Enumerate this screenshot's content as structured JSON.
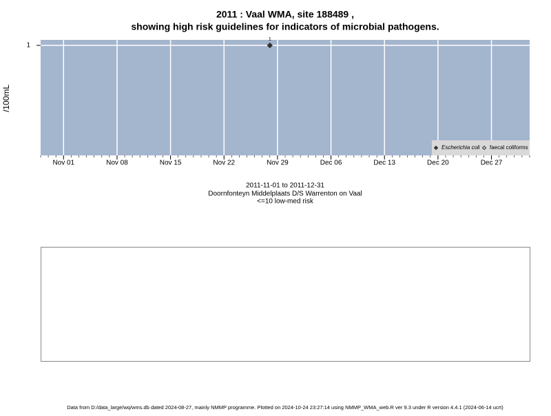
{
  "chart_data": {
    "type": "scatter",
    "title": "2011 : Vaal WMA, site 188489 ,",
    "subtitle": "showing high risk guidelines for indicators of microbial pathogens.",
    "y_label": "/100mL",
    "annotations": [
      "2011-11-01 to 2011-12-31",
      "Doornfonteyn Middelplaats D/S Warrenton on Vaal",
      "<=10 low-med risk"
    ],
    "footer": "Data from D:/data_large/wq/wms.db dated 2024-08-27, mainly NMMP programme. Plotted on 2024-10-24 23:27:14 using NMMP_WMA_web.R ver 9.3 under R version 4.4.1 (2024-06-14 ucrt)",
    "series": [
      {
        "name": "Escherichia coli",
        "color": "#333333",
        "filled": true,
        "x": [
          "2011-11-28"
        ],
        "values": [
          1
        ]
      },
      {
        "name": "faecal coliforms",
        "color": "#333333",
        "filled": false,
        "x": [],
        "values": []
      }
    ],
    "xlim": [
      "2011-10-29",
      "2012-01-01"
    ],
    "xticks": [
      {
        "value": "2011-11-01",
        "label": "Nov 01"
      },
      {
        "value": "2011-11-08",
        "label": "Nov 08"
      },
      {
        "value": "2011-11-15",
        "label": "Nov 15"
      },
      {
        "value": "2011-11-22",
        "label": "Nov 22"
      },
      {
        "value": "2011-11-29",
        "label": "Nov 29"
      },
      {
        "value": "2011-12-06",
        "label": "Dec 06"
      },
      {
        "value": "2011-12-13",
        "label": "Dec 13"
      },
      {
        "value": "2011-12-20",
        "label": "Dec 20"
      },
      {
        "value": "2011-12-27",
        "label": "Dec 27"
      }
    ],
    "ylim": [
      0,
      1.05
    ],
    "yticks": [
      1
    ],
    "grid": true,
    "legend": "bottom-right"
  }
}
